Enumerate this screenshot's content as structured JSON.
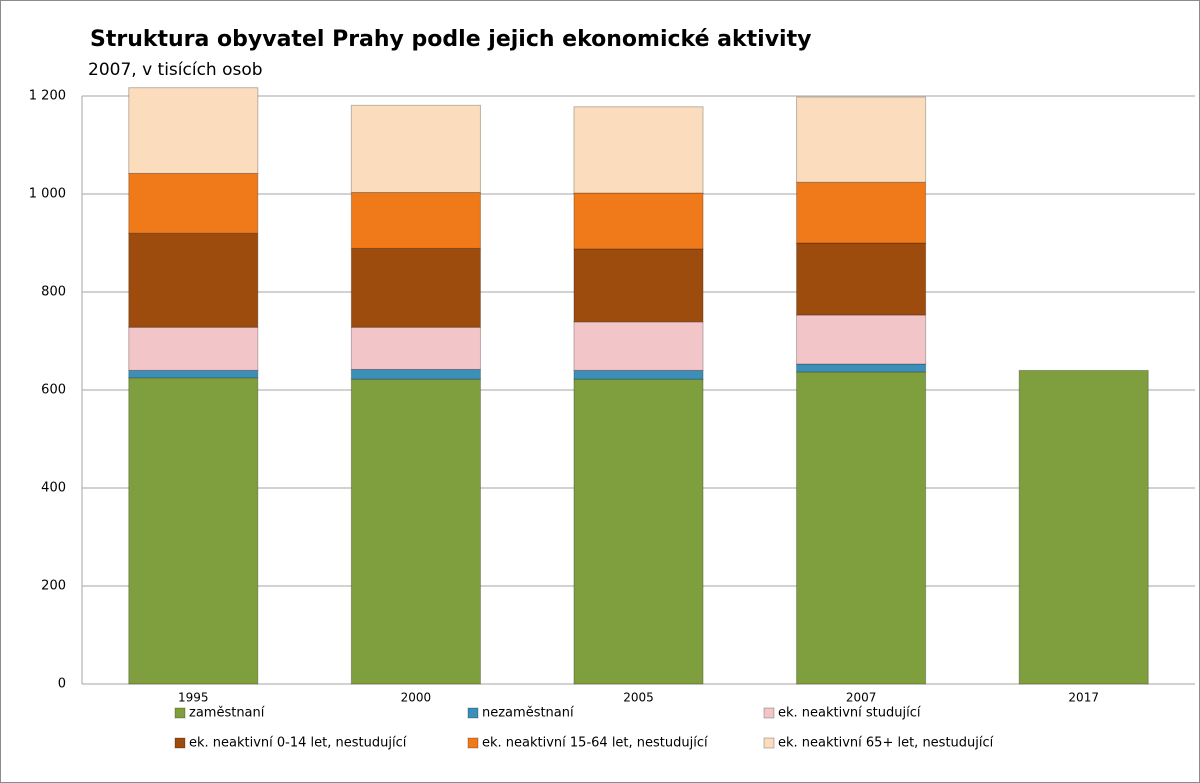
{
  "chart_data": {
    "type": "stacked_bar",
    "title": "Struktura obyvatel Prahy podle jejich ekonomické aktivity",
    "subtitle": "2007, v tisících osob",
    "categories": [
      "1995",
      "2000",
      "2005",
      "2007",
      "2017"
    ],
    "series": [
      {
        "name": "zaměstnaní",
        "color": "#7f9f3e",
        "values": [
          625,
          622,
          622,
          637,
          640
        ]
      },
      {
        "name": "nezaměstnaní",
        "color": "#3b8fb9",
        "values": [
          15,
          20,
          18,
          16,
          null
        ]
      },
      {
        "name": "ek. neaktivní studující",
        "color": "#f2c6c8",
        "values": [
          88,
          86,
          99,
          100,
          null
        ]
      },
      {
        "name": "ek. neaktivní 0-14 let, nestudující",
        "color": "#9e4c0e",
        "values": [
          192,
          161,
          149,
          147,
          null
        ]
      },
      {
        "name": "ek. neaktivní 15-64 let, nestudující",
        "color": "#f07a1a",
        "values": [
          122,
          114,
          114,
          124,
          null
        ]
      },
      {
        "name": "ek. neaktivní 65+ let, nestudující",
        "color": "#fbdcbc",
        "values": [
          175,
          178,
          176,
          174,
          null
        ]
      }
    ],
    "ylim": [
      0,
      1200
    ],
    "yticks": [
      0,
      200,
      400,
      600,
      800,
      {
        "value": 1000,
        "label": "1 000"
      },
      {
        "value": 1200,
        "label": "1 200"
      }
    ],
    "grid": true,
    "legend": "bottom"
  }
}
